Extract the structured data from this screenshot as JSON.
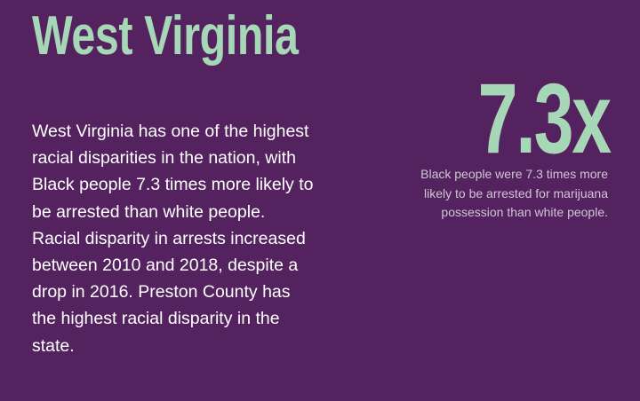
{
  "header": {
    "title": "West Virginia"
  },
  "body": {
    "lines": [
      "West Virginia has one of the highest",
      "racial disparities in the nation, with",
      "Black people 7.3 times more likely to",
      "be arrested than white people.",
      "Racial disparity in arrests increased",
      "between 2010 and 2018, despite a",
      "drop in 2016. Preston County has",
      "the highest racial disparity in the",
      "state."
    ]
  },
  "stat": {
    "value": "7.3x",
    "caption_lines": [
      "Black people were 7.3 times more",
      "likely to be arrested for marijuana",
      "possession than white people."
    ]
  }
}
